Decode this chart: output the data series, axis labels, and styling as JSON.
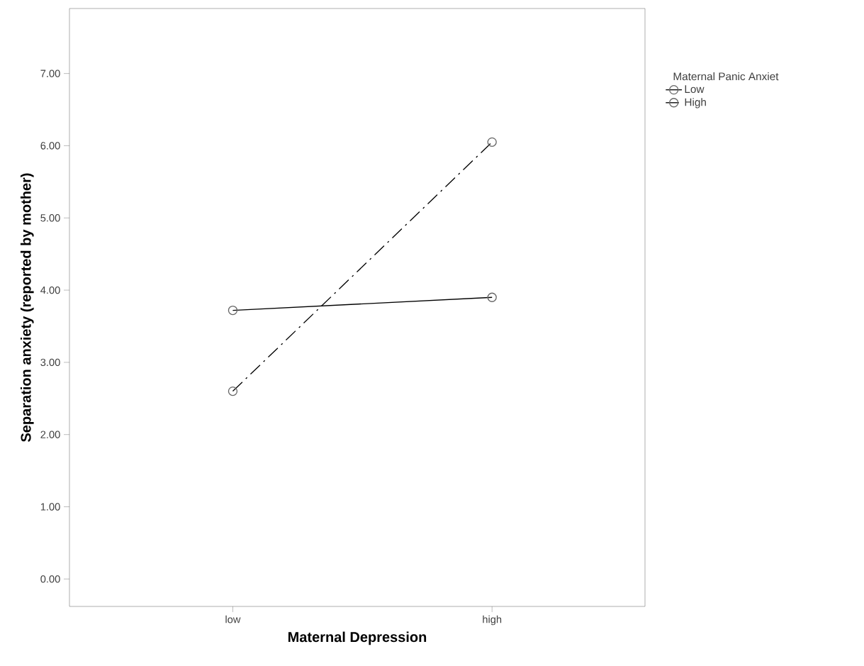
{
  "chart_data": {
    "type": "line",
    "xlabel": "Maternal Depression",
    "ylabel": "Separation anxiety (reported by mother)",
    "legend_title": "Maternal Panic Anxiet",
    "categories": [
      "low",
      "high"
    ],
    "series": [
      {
        "name": "Low",
        "color": "#000000",
        "values": [
          3.72,
          3.9
        ],
        "line_style": "solid"
      },
      {
        "name": "High",
        "color": "#000000",
        "values": [
          2.6,
          6.05
        ],
        "line_style": "dashed"
      }
    ],
    "ylim": [
      -0.38,
      7.9
    ],
    "yticks": [
      {
        "value": 0,
        "label": "0.00"
      },
      {
        "value": 1,
        "label": "1.00"
      },
      {
        "value": 2,
        "label": "2.00"
      },
      {
        "value": 3,
        "label": "3.00"
      },
      {
        "value": 4,
        "label": "4.00"
      },
      {
        "value": 5,
        "label": "5.00"
      },
      {
        "value": 6,
        "label": "6.00"
      },
      {
        "value": 7,
        "label": "7.00"
      }
    ],
    "marker": "circle",
    "grid": false,
    "legend": "right"
  }
}
